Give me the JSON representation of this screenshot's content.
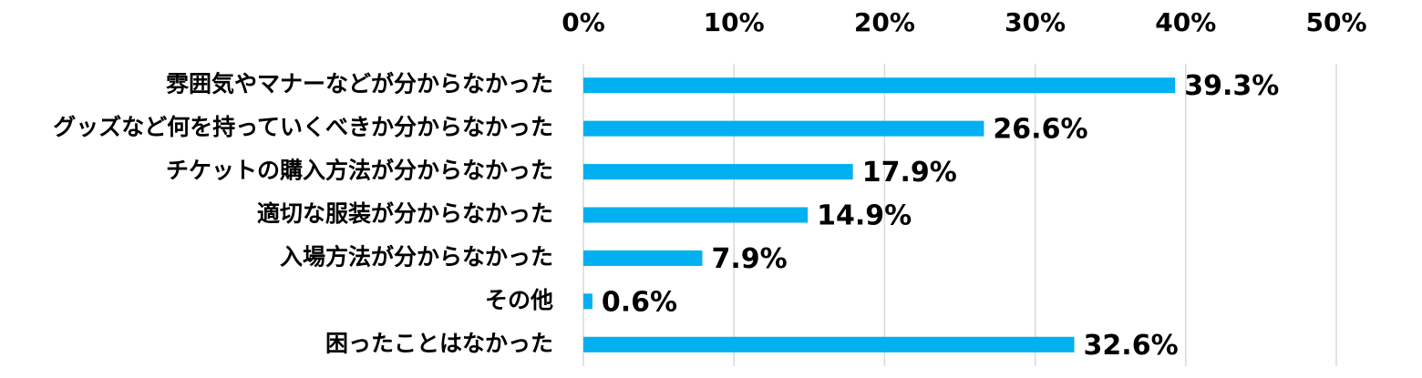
{
  "chart_data": {
    "type": "bar",
    "orientation": "horizontal",
    "categories": [
      "雰囲気やマナーなどが分からなかった",
      "グッズなど何を持っていくべきか分からなかった",
      "チケットの購入方法が分からなかった",
      "適切な服装が分からなかった",
      "入場方法が分からなかった",
      "その他",
      "困ったことはなかった"
    ],
    "values": [
      39.3,
      26.6,
      17.9,
      14.9,
      7.9,
      0.6,
      32.6
    ],
    "value_labels": [
      "39.3%",
      "26.6%",
      "17.9%",
      "14.9%",
      "7.9%",
      "0.6%",
      "32.6%"
    ],
    "color": "#00b0f0",
    "xlim": [
      0,
      50
    ],
    "xticks": [
      {
        "value": 0,
        "label": "0%"
      },
      {
        "value": 10,
        "label": "10%"
      },
      {
        "value": 20,
        "label": "20%"
      },
      {
        "value": 30,
        "label": "30%"
      },
      {
        "value": 40,
        "label": "40%"
      },
      {
        "value": 50,
        "label": "50%"
      }
    ],
    "grid": true
  }
}
